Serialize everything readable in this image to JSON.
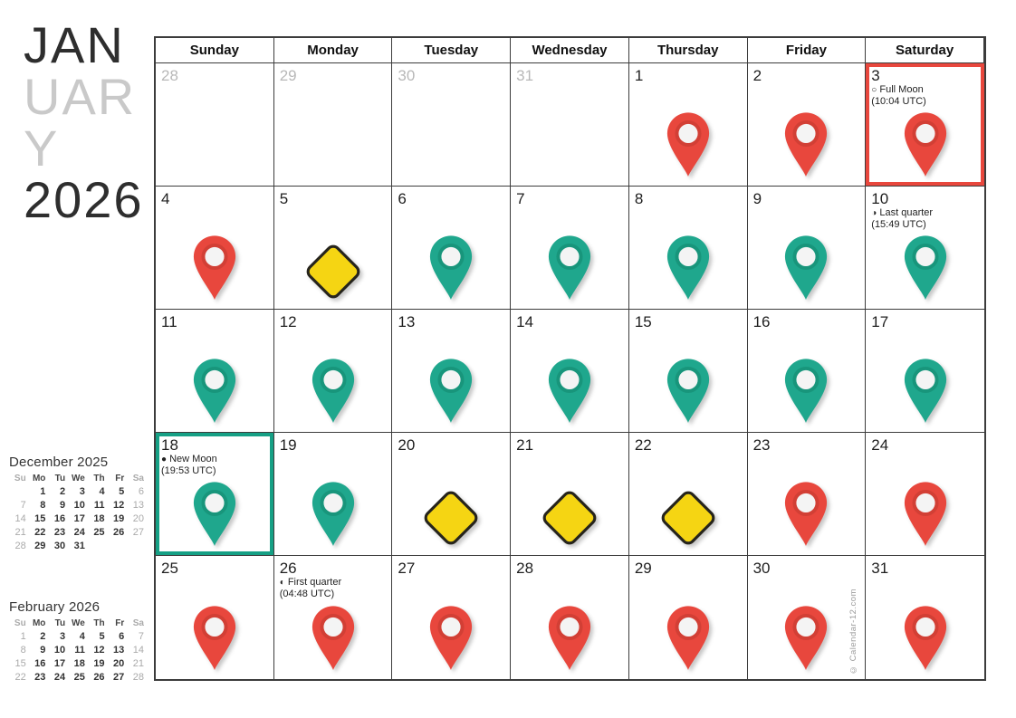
{
  "title": {
    "line1": "JAN",
    "line2": "UAR",
    "line3": "Y",
    "year": "2026"
  },
  "colors": {
    "red_pin": "#e8473d",
    "red_ring": "#c0392f",
    "teal_pin": "#1fa78d",
    "teal_ring": "#12866e",
    "diamond_fill": "#f5d513",
    "diamond_stroke": "#26241c",
    "highlight_red": "#e8473d",
    "highlight_teal": "#16a085",
    "pin_inner": "#f4f4f4",
    "grid_line": "#3c3c3c",
    "outside_day": "#b8b8b8"
  },
  "calendar": {
    "weekday_headers": [
      "Sunday",
      "Monday",
      "Tuesday",
      "Wednesday",
      "Thursday",
      "Friday",
      "Saturday"
    ],
    "days": [
      {
        "num": "28",
        "outside": true,
        "marker": null
      },
      {
        "num": "29",
        "outside": true,
        "marker": null
      },
      {
        "num": "30",
        "outside": true,
        "marker": null
      },
      {
        "num": "31",
        "outside": true,
        "marker": null
      },
      {
        "num": "1",
        "outside": false,
        "marker": "red-pin"
      },
      {
        "num": "2",
        "outside": false,
        "marker": "red-pin"
      },
      {
        "num": "3",
        "outside": false,
        "marker": "red-pin",
        "highlight": "red",
        "note": {
          "icon": "○",
          "label": "Full Moon",
          "time": "(10:04 UTC)"
        }
      },
      {
        "num": "4",
        "outside": false,
        "marker": "red-pin"
      },
      {
        "num": "5",
        "outside": false,
        "marker": "diamond"
      },
      {
        "num": "6",
        "outside": false,
        "marker": "teal-pin"
      },
      {
        "num": "7",
        "outside": false,
        "marker": "teal-pin"
      },
      {
        "num": "8",
        "outside": false,
        "marker": "teal-pin"
      },
      {
        "num": "9",
        "outside": false,
        "marker": "teal-pin"
      },
      {
        "num": "10",
        "outside": false,
        "marker": "teal-pin",
        "note": {
          "icon": "◑",
          "label": "Last quarter",
          "time": "(15:49 UTC)"
        }
      },
      {
        "num": "11",
        "outside": false,
        "marker": "teal-pin"
      },
      {
        "num": "12",
        "outside": false,
        "marker": "teal-pin"
      },
      {
        "num": "13",
        "outside": false,
        "marker": "teal-pin"
      },
      {
        "num": "14",
        "outside": false,
        "marker": "teal-pin"
      },
      {
        "num": "15",
        "outside": false,
        "marker": "teal-pin"
      },
      {
        "num": "16",
        "outside": false,
        "marker": "teal-pin"
      },
      {
        "num": "17",
        "outside": false,
        "marker": "teal-pin"
      },
      {
        "num": "18",
        "outside": false,
        "marker": "teal-pin",
        "highlight": "teal",
        "note": {
          "icon": "●",
          "label": "New Moon",
          "time": "(19:53 UTC)"
        }
      },
      {
        "num": "19",
        "outside": false,
        "marker": "teal-pin"
      },
      {
        "num": "20",
        "outside": false,
        "marker": "diamond"
      },
      {
        "num": "21",
        "outside": false,
        "marker": "diamond"
      },
      {
        "num": "22",
        "outside": false,
        "marker": "diamond"
      },
      {
        "num": "23",
        "outside": false,
        "marker": "red-pin"
      },
      {
        "num": "24",
        "outside": false,
        "marker": "red-pin"
      },
      {
        "num": "25",
        "outside": false,
        "marker": "red-pin"
      },
      {
        "num": "26",
        "outside": false,
        "marker": "red-pin",
        "note": {
          "icon": "◐",
          "label": "First quarter",
          "time": "(04:48 UTC)"
        }
      },
      {
        "num": "27",
        "outside": false,
        "marker": "red-pin"
      },
      {
        "num": "28",
        "outside": false,
        "marker": "red-pin"
      },
      {
        "num": "29",
        "outside": false,
        "marker": "red-pin"
      },
      {
        "num": "30",
        "outside": false,
        "marker": "red-pin"
      },
      {
        "num": "31",
        "outside": false,
        "marker": "red-pin",
        "copyright_here": true
      }
    ]
  },
  "mini_calendars": [
    {
      "title": "December 2025",
      "headers": [
        "Su",
        "Mo",
        "Tu",
        "We",
        "Th",
        "Fr",
        "Sa"
      ],
      "weeks": [
        [
          "",
          "1",
          "2",
          "3",
          "4",
          "5",
          "6"
        ],
        [
          "7",
          "8",
          "9",
          "10",
          "11",
          "12",
          "13"
        ],
        [
          "14",
          "15",
          "16",
          "17",
          "18",
          "19",
          "20"
        ],
        [
          "21",
          "22",
          "23",
          "24",
          "25",
          "26",
          "27"
        ],
        [
          "28",
          "29",
          "30",
          "31",
          "",
          "",
          ""
        ]
      ]
    },
    {
      "title": "February 2026",
      "headers": [
        "Su",
        "Mo",
        "Tu",
        "We",
        "Th",
        "Fr",
        "Sa"
      ],
      "weeks": [
        [
          "1",
          "2",
          "3",
          "4",
          "5",
          "6",
          "7"
        ],
        [
          "8",
          "9",
          "10",
          "11",
          "12",
          "13",
          "14"
        ],
        [
          "15",
          "16",
          "17",
          "18",
          "19",
          "20",
          "21"
        ],
        [
          "22",
          "23",
          "24",
          "25",
          "26",
          "27",
          "28"
        ]
      ]
    }
  ],
  "copyright": "© Calendar-12.com"
}
